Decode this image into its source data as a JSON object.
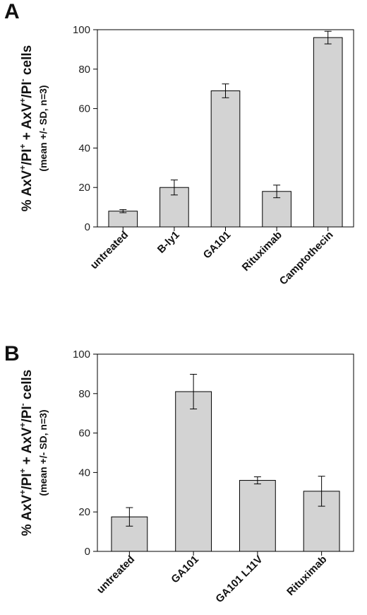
{
  "chart_data": [
    {
      "type": "bar",
      "panel_label": "A",
      "categories": [
        "untreated",
        "B-ly1",
        "GA101",
        "Rituximab",
        "Camptothecin"
      ],
      "values": [
        8,
        20,
        69,
        18,
        96
      ],
      "errors": [
        0.8,
        3.8,
        3.5,
        3.2,
        3.2
      ],
      "ylabel_main": [
        "% AxV",
        "+",
        "/PI",
        "+",
        " + AxV",
        "+",
        "/PI",
        "-",
        " cells"
      ],
      "ylabel_sub": "(mean +/- SD, n=3)",
      "ylim": [
        0,
        100
      ],
      "yticks": [
        "0",
        "20",
        "40",
        "60",
        "80",
        "100"
      ],
      "bar_color": "#d3d3d3"
    },
    {
      "type": "bar",
      "panel_label": "B",
      "categories": [
        "untreated",
        "GA101",
        "GA101 L11V",
        "Rituximab"
      ],
      "values": [
        17.5,
        81,
        36,
        30.5
      ],
      "errors": [
        4.7,
        8.8,
        1.8,
        7.6
      ],
      "ylabel_main": [
        "% AxV",
        "+",
        "/PI",
        "+",
        " + AxV",
        "+",
        "/PI",
        "-",
        " cells"
      ],
      "ylabel_sub": "(mean +/- SD, n=3)",
      "ylim": [
        0,
        100
      ],
      "yticks": [
        "0",
        "20",
        "40",
        "60",
        "80",
        "100"
      ],
      "bar_color": "#d3d3d3"
    }
  ]
}
